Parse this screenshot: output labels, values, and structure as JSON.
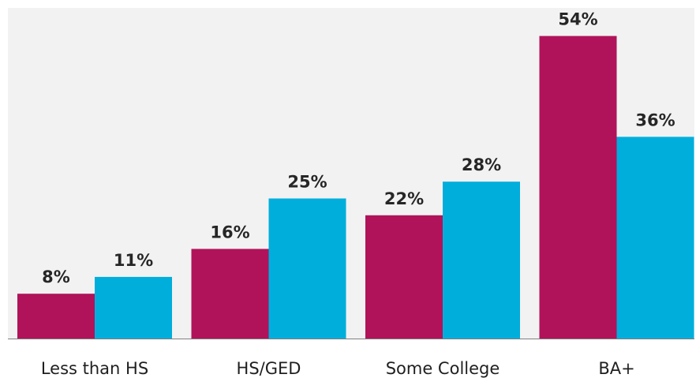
{
  "chart_data": {
    "type": "bar",
    "title": "",
    "xlabel": "",
    "ylabel": "",
    "categories": [
      "Less than HS",
      "HS/GED",
      "Some College",
      "BA+"
    ],
    "series": [
      {
        "color": "#B0135A",
        "values": [
          8,
          16,
          22,
          54
        ],
        "labels": [
          "8%",
          "16%",
          "22%",
          "54%"
        ]
      },
      {
        "color": "#00AEDC",
        "values": [
          11,
          25,
          28,
          36
        ],
        "labels": [
          "11%",
          "25%",
          "28%",
          "36%"
        ]
      }
    ],
    "ylim": [
      0,
      60
    ],
    "grid": false,
    "legend": "none",
    "plot_background": "#F2F2F2"
  }
}
